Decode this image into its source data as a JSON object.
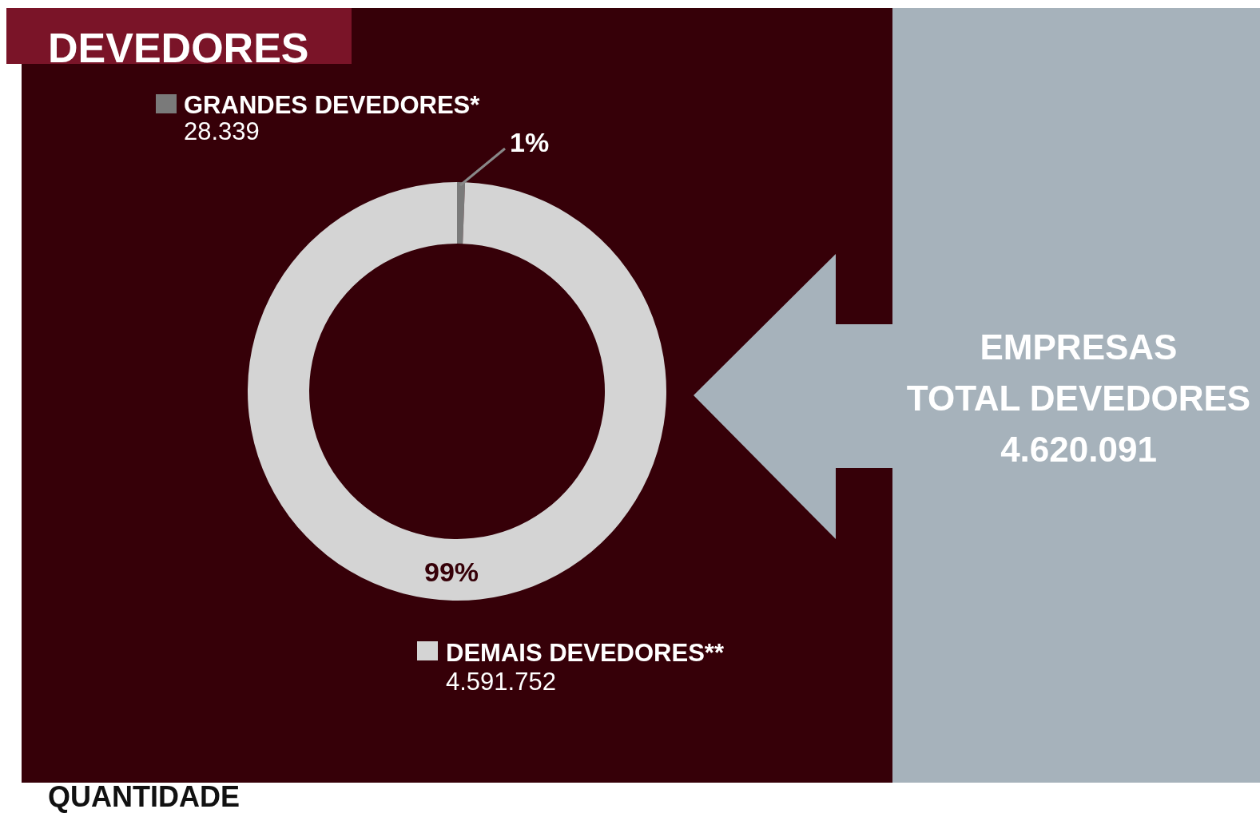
{
  "chart_data": {
    "type": "donut",
    "title": "DEVEDORES",
    "categories": [
      "GRANDES DEVEDORES*",
      "DEMAIS DEVEDORES**"
    ],
    "values": [
      28339,
      4591752
    ],
    "value_labels": [
      "28.339",
      "4.591.752"
    ],
    "colors": [
      "#7a7a7a",
      "#d4d4d4"
    ],
    "legend": "top left",
    "annotations": [
      "1%",
      "99%",
      "EMPRESAS",
      "TOTAL DEVEDORES",
      "4.620.091",
      "QUANTIDADE"
    ]
  }
}
